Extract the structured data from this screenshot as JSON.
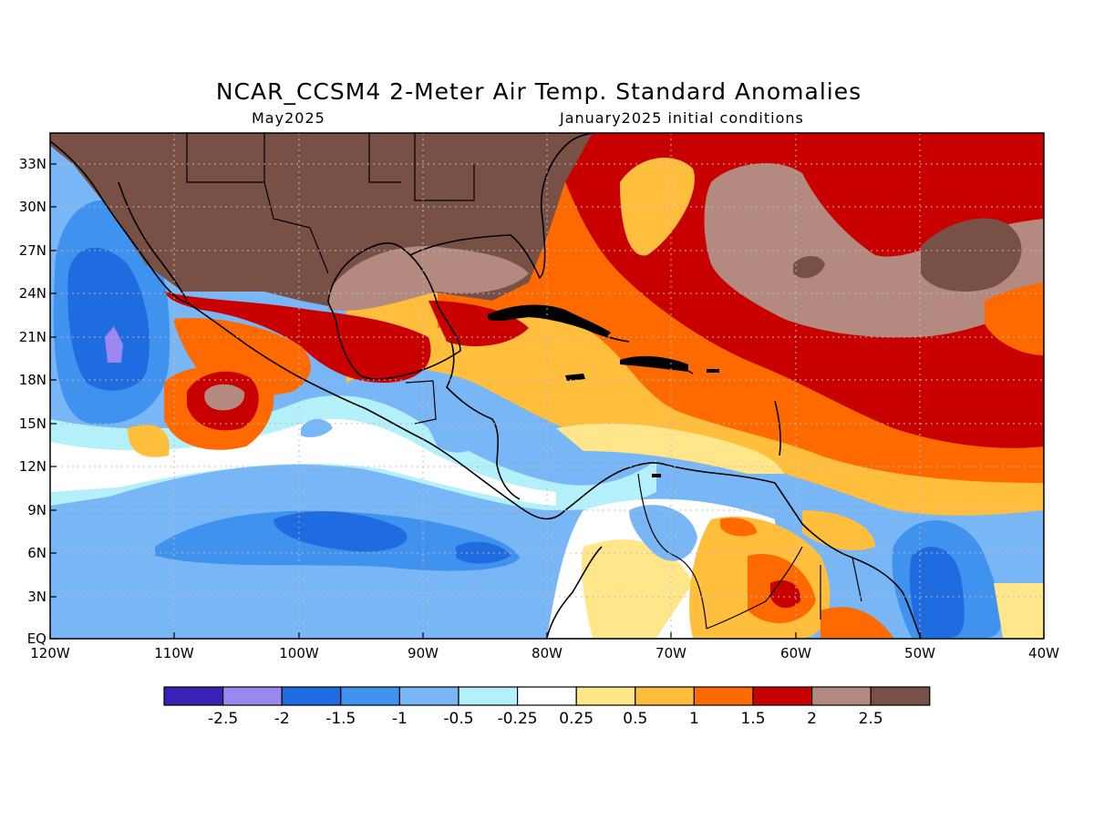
{
  "title": "NCAR_CCSM4 2-Meter Air Temp. Standard Anomalies",
  "subtitle_left": "May2025",
  "subtitle_right": "January2025 initial conditions",
  "lat_labels": [
    "33N",
    "30N",
    "27N",
    "24N",
    "21N",
    "18N",
    "15N",
    "12N",
    "9N",
    "6N",
    "3N",
    "EQ"
  ],
  "lon_labels": [
    "120W",
    "110W",
    "100W",
    "90W",
    "80W",
    "70W",
    "60W",
    "50W",
    "40W"
  ],
  "colorbar": {
    "colors": [
      "#3a20b4",
      "#9b87f0",
      "#1f6be0",
      "#3f92ee",
      "#78b6f5",
      "#b4f0fa",
      "#ffffff",
      "#ffe68a",
      "#ffbe3c",
      "#ff6a00",
      "#c80000",
      "#b48a80",
      "#785046"
    ],
    "labels": [
      "-2.5",
      "-2",
      "-1.5",
      "-1",
      "-0.5",
      "-0.25",
      "0.25",
      "0.5",
      "1",
      "1.5",
      "2",
      "2.5"
    ]
  },
  "colors": {
    "very_warm": "#785046",
    "warm_2": "#b48a80",
    "warm_15": "#c80000",
    "warm_1": "#ff6a00",
    "warm_05": "#ffbe3c",
    "warm_025": "#ffe68a",
    "neutral": "#ffffff",
    "cool_025": "#b4f0fa",
    "cool_05": "#78b6f5",
    "cool_1": "#3f92ee",
    "cool_15": "#1f6be0",
    "cool_2": "#9b87f0"
  }
}
